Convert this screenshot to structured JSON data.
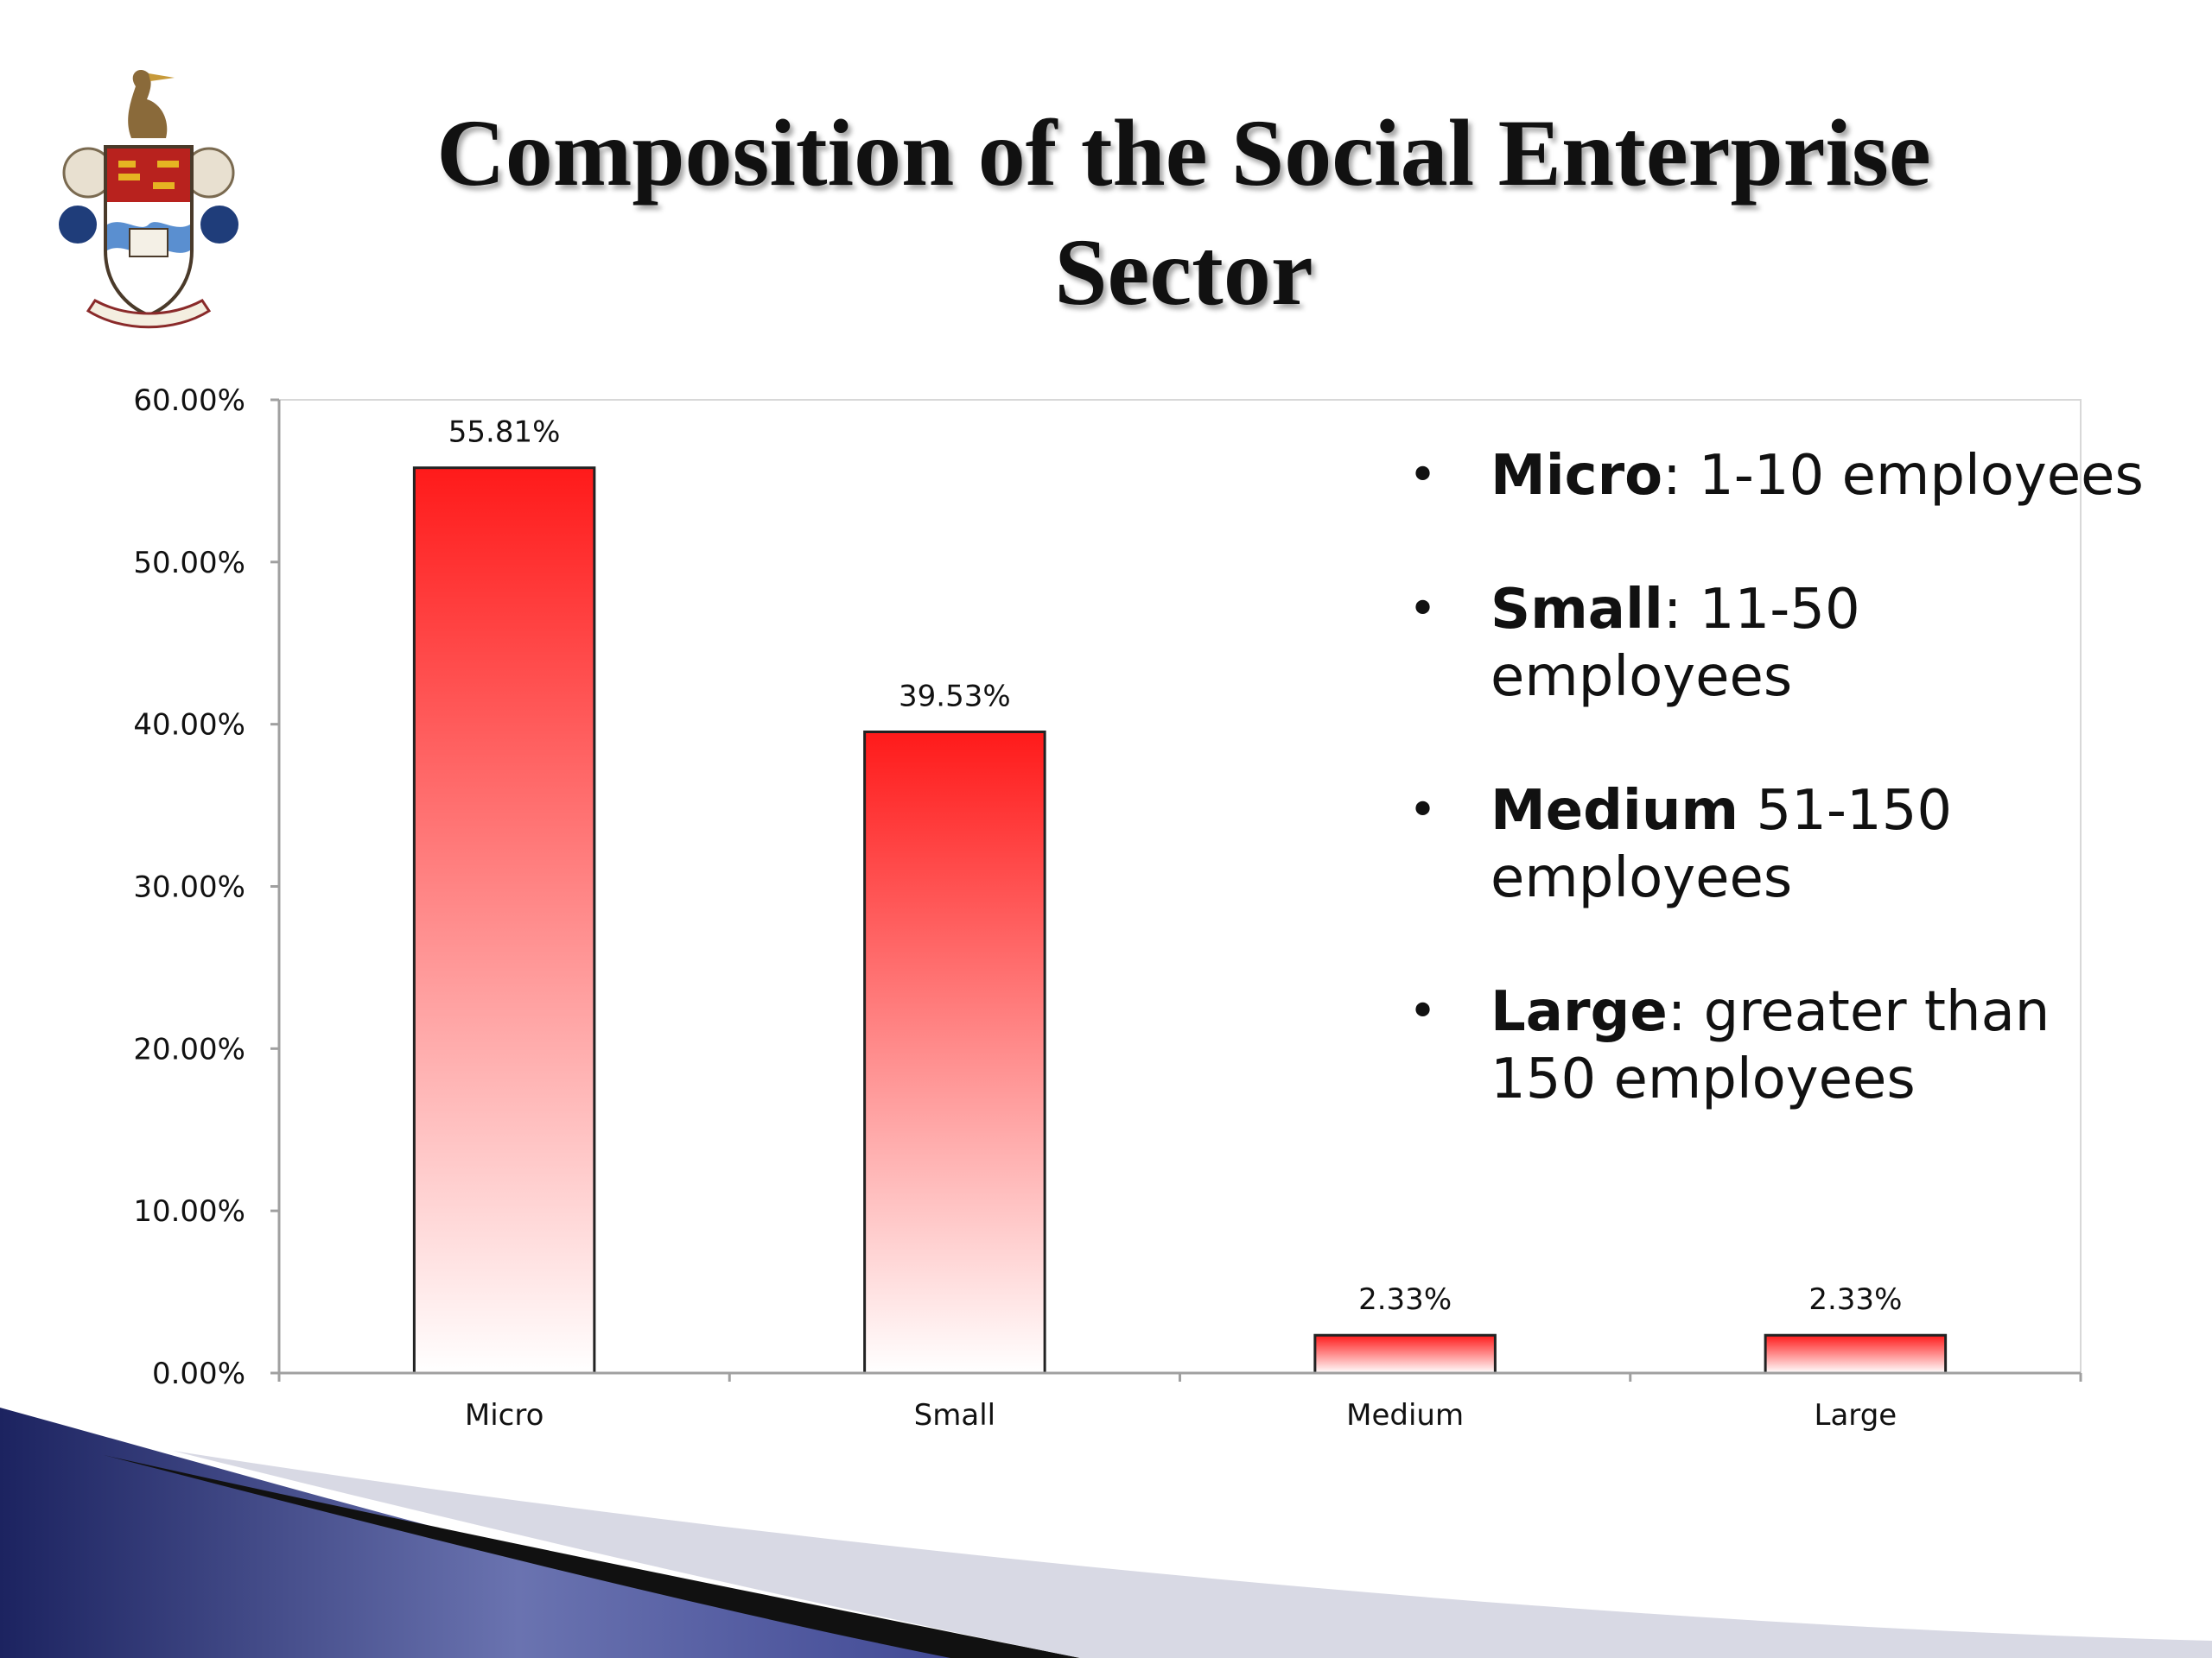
{
  "slide": {
    "title_line1": "Composition of the Social Enterprise",
    "title_line2": "Sector"
  },
  "legend": {
    "items": [
      {
        "term": "Micro",
        "separator": ":",
        "text": " 1-10 employees"
      },
      {
        "term": "Small",
        "separator": ":",
        "text": " 11-50 employees"
      },
      {
        "term": "Medium",
        "separator": "",
        "text": " 51-150 employees"
      },
      {
        "term": "Large",
        "separator": ":",
        "text": " greater than 150 employees"
      }
    ]
  },
  "chart_data": {
    "type": "bar",
    "categories": [
      "Micro",
      "Small",
      "Medium",
      "Large"
    ],
    "values": [
      55.81,
      39.53,
      2.33,
      2.33
    ],
    "data_labels": [
      "55.81%",
      "39.53%",
      "2.33%",
      "2.33%"
    ],
    "title": "",
    "xlabel": "",
    "ylabel": "",
    "ylim": [
      0,
      60
    ],
    "y_ticks": [
      0,
      10,
      20,
      30,
      40,
      50,
      60
    ],
    "y_tick_labels": [
      "0.00%",
      "10.00%",
      "20.00%",
      "30.00%",
      "40.00%",
      "50.00%",
      "60.00%"
    ],
    "grid": false,
    "legend_placement": "none",
    "bar_gradient": {
      "top": "#ff1a1a",
      "bottom": "#ffffff"
    },
    "bar_outline": "#222222",
    "axis_color": "#a0a0a0"
  }
}
